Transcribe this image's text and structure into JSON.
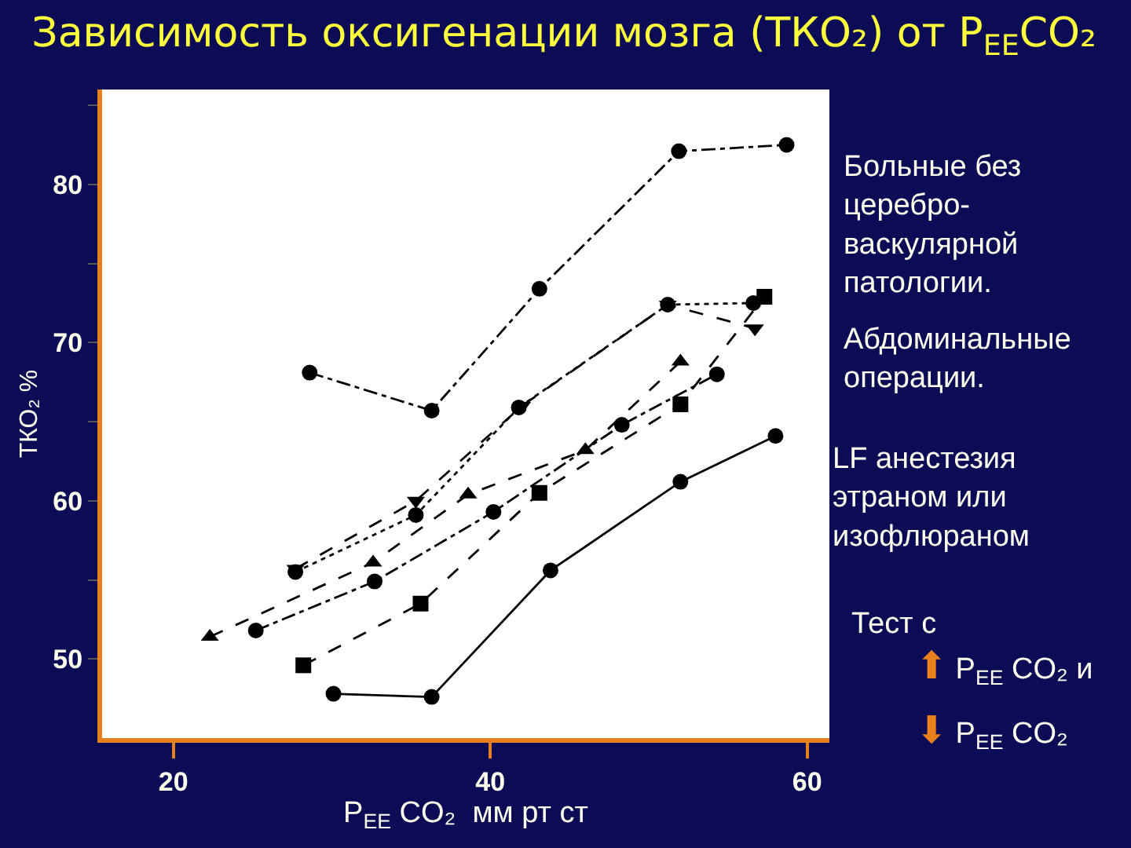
{
  "chart_data": {
    "type": "line",
    "title": "Зависимость оксигенации мозга (ТКО₂) от P$_{EE}$CO₂",
    "xlabel": "P$_{EE}$ CO₂  мм рт ст",
    "ylabel": "ТКО₂ %",
    "xlim": [
      15.5,
      61.4
    ],
    "xticks": [
      20,
      40,
      60
    ],
    "ylim": [
      45,
      86
    ],
    "yticks": [
      50,
      {
        "value": 55,
        "label": null
      },
      60,
      {
        "value": 65,
        "label": null
      },
      70,
      {
        "value": 75,
        "label": null
      },
      80,
      {
        "value": 85,
        "label": null
      }
    ],
    "annotations": [
      "Больные без\nцеребро-\nваскулярной\nпатологии.",
      "Абдоминальные\nоперации.",
      "LF анестезия\nэтраном или\nизофлюраном",
      "Тест с",
      "⬆ P$_{EE}$ CO₂ и",
      "⬇ P$_{EE}$ CO₂"
    ],
    "series": [
      {
        "color": "#000000",
        "marker": "circle",
        "line_style": "dashdot",
        "x": [
          28.6,
          36.3,
          43.1,
          51.9,
          58.7
        ],
        "values": [
          68.1,
          65.7,
          73.4,
          82.1,
          82.5
        ]
      },
      {
        "color": "#000000",
        "marker": "circle",
        "line_style": "solid",
        "x": [
          30.1,
          36.3,
          43.8,
          52.0,
          58.0
        ],
        "values": [
          47.8,
          47.6,
          55.6,
          61.2,
          64.1
        ]
      },
      {
        "color": "#000000",
        "marker": "triangle",
        "line_style": "dashed",
        "x": [
          22.3,
          32.6,
          38.6,
          46.0,
          52.0
        ],
        "values": [
          51.4,
          56.1,
          60.4,
          63.2,
          68.8
        ]
      },
      {
        "color": "#000000",
        "marker": "circle",
        "line_style": "dashdot",
        "x": [
          25.2,
          32.7,
          40.2,
          48.3,
          54.3
        ],
        "values": [
          51.8,
          54.9,
          59.3,
          64.8,
          68.0
        ]
      },
      {
        "color": "#000000",
        "marker": "triangle-down",
        "line_style": "dashed",
        "x": [
          27.7,
          35.3,
          42.0,
          51.2,
          56.7
        ],
        "values": [
          55.7,
          60.0,
          66.0,
          72.4,
          70.9
        ]
      },
      {
        "color": "#000000",
        "marker": "circle",
        "line_style": "dotted",
        "x": [
          27.7,
          35.3,
          41.8,
          51.2,
          56.6
        ],
        "values": [
          55.5,
          59.1,
          65.9,
          72.4,
          72.5
        ]
      },
      {
        "color": "#000000",
        "marker": "square",
        "line_style": "dashed",
        "x": [
          28.2,
          35.6,
          43.1,
          52.0,
          57.3
        ],
        "values": [
          49.6,
          53.5,
          60.5,
          66.1,
          72.9
        ]
      }
    ]
  }
}
